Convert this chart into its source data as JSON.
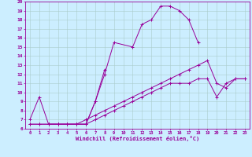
{
  "xlabel": "Windchill (Refroidissement éolien,°C)",
  "bg_color": "#cceeff",
  "line_color": "#990099",
  "grid_color": "#aacccc",
  "xlim": [
    -0.5,
    23.5
  ],
  "ylim": [
    6,
    20
  ],
  "xticks": [
    0,
    1,
    2,
    3,
    4,
    5,
    6,
    7,
    8,
    9,
    10,
    11,
    12,
    13,
    14,
    15,
    16,
    17,
    18,
    19,
    20,
    21,
    22,
    23
  ],
  "yticks": [
    6,
    7,
    8,
    9,
    10,
    11,
    12,
    13,
    14,
    15,
    16,
    17,
    18,
    19,
    20
  ],
  "line1_x": [
    0,
    1,
    2,
    3,
    4,
    5,
    6,
    7,
    8,
    9,
    11,
    12,
    13,
    14,
    15,
    16,
    17,
    18
  ],
  "line1_y": [
    7,
    9.5,
    6.5,
    6.5,
    6.5,
    6.5,
    6.5,
    9,
    12,
    15.5,
    15,
    17.5,
    18,
    19.5,
    19.5,
    19,
    18,
    15.5
  ],
  "line2_x": [
    2,
    3,
    4,
    5,
    6,
    7,
    8
  ],
  "line2_y": [
    6.5,
    6.5,
    6.5,
    6.5,
    6.5,
    9,
    12.5
  ],
  "line3_x": [
    0,
    1,
    2,
    3,
    4,
    5,
    6,
    7,
    8,
    9,
    10,
    11,
    12,
    13,
    14,
    15,
    16,
    17,
    18,
    19,
    20,
    21,
    22,
    23
  ],
  "line3_y": [
    6.5,
    6.5,
    6.5,
    6.5,
    6.5,
    6.5,
    7,
    7.5,
    8,
    8.5,
    9,
    9.5,
    10,
    10.5,
    11,
    11.5,
    12,
    12.5,
    13,
    13.5,
    11,
    10.5,
    11.5,
    11.5
  ],
  "line4_x": [
    0,
    1,
    2,
    3,
    4,
    5,
    6,
    7,
    8,
    9,
    10,
    11,
    12,
    13,
    14,
    15,
    16,
    17,
    18,
    19,
    20,
    21,
    22,
    23
  ],
  "line4_y": [
    6.5,
    6.5,
    6.5,
    6.5,
    6.5,
    6.5,
    6.5,
    7,
    7.5,
    8,
    8.5,
    9,
    9.5,
    10,
    10.5,
    11,
    11,
    11,
    11.5,
    11.5,
    9.5,
    11,
    11.5,
    11.5
  ]
}
